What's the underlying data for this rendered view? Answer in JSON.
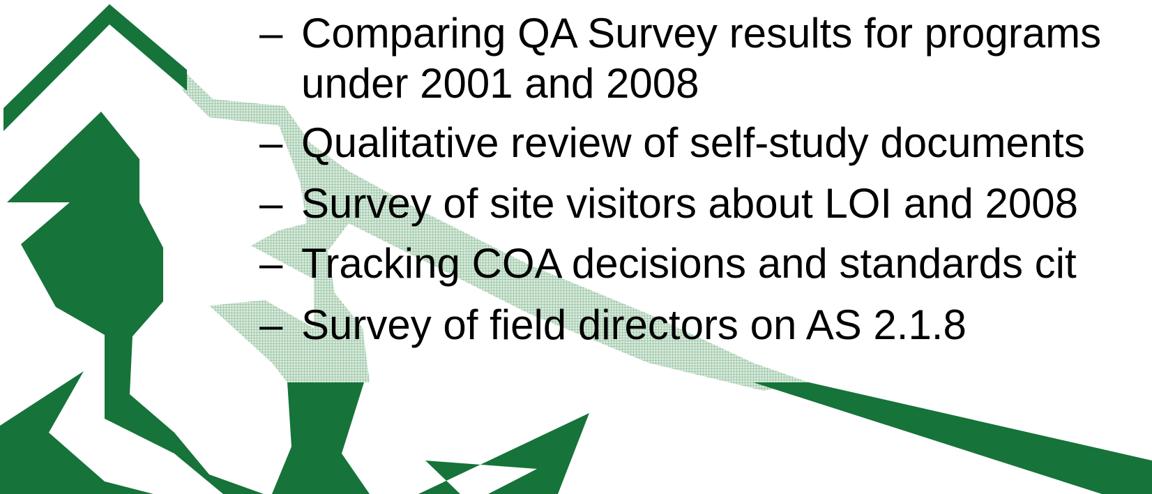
{
  "items": [
    {
      "marker": "–",
      "lines": [
        "Comparing QA Survey results for programs",
        "under 2001 and 2008"
      ]
    },
    {
      "marker": "–",
      "lines": [
        "Qualitative review of self-study documents"
      ]
    },
    {
      "marker": "–",
      "lines": [
        "Survey of site visitors about LOI and 2008"
      ]
    },
    {
      "marker": "–",
      "lines": [
        "Tracking COA decisions and standards cit"
      ]
    },
    {
      "marker": "–",
      "lines": [
        "Survey of field directors on AS 2.1.8"
      ]
    }
  ]
}
